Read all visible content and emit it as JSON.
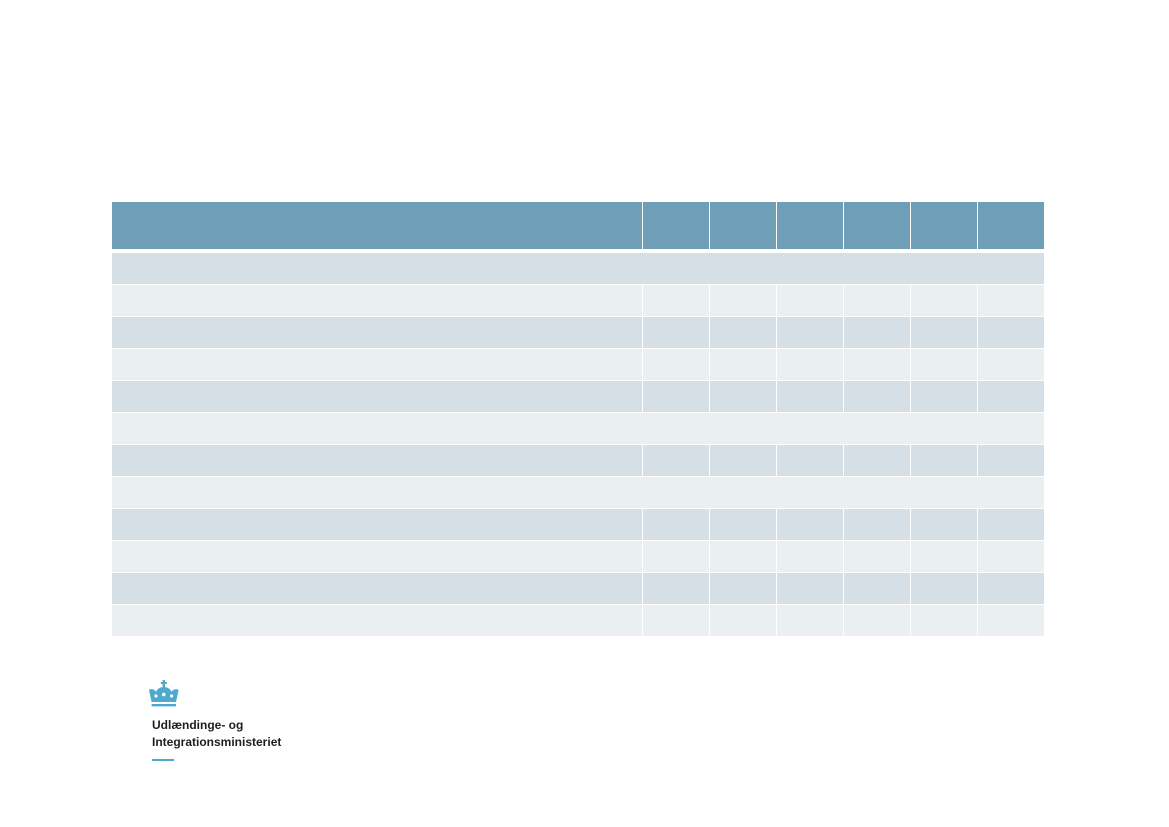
{
  "colors": {
    "header": "#6e9eb8",
    "row_dark": "#d5dfe5",
    "row_light": "#eaeff2",
    "accent": "#4ea9cd"
  },
  "table": {
    "columns": 7,
    "rows": [
      {
        "tone": "dark",
        "merged": true
      },
      {
        "tone": "light",
        "merged": false
      },
      {
        "tone": "dark",
        "merged": false
      },
      {
        "tone": "light",
        "merged": false
      },
      {
        "tone": "dark",
        "merged": false
      },
      {
        "tone": "light",
        "merged": true
      },
      {
        "tone": "dark",
        "merged": false
      },
      {
        "tone": "light",
        "merged": true
      },
      {
        "tone": "dark",
        "merged": false
      },
      {
        "tone": "light",
        "merged": false
      },
      {
        "tone": "dark",
        "merged": false
      },
      {
        "tone": "light",
        "merged": false
      }
    ]
  },
  "logo": {
    "icon": "crown-icon",
    "line1": "Udlændinge- og",
    "line2": "Integrationsministeriet"
  }
}
